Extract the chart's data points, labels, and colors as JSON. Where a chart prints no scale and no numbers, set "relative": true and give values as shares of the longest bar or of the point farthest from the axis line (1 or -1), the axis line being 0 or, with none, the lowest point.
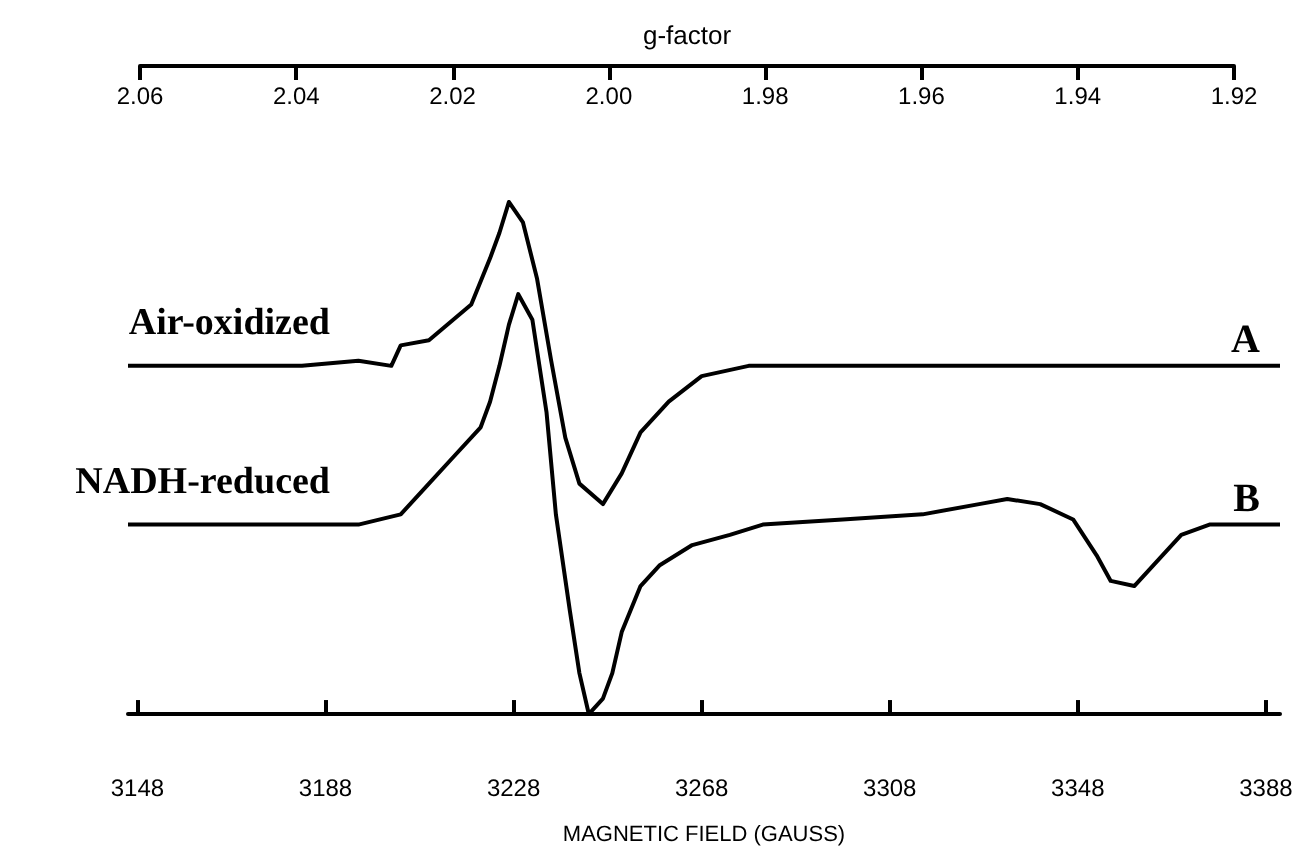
{
  "chart_data": {
    "type": "line",
    "relative": true,
    "marker": "none",
    "grid": false,
    "legend": false,
    "xlabel": "MAGNETIC FIELD (GAUSS)",
    "x2label": "g-factor",
    "xlim": [
      3146,
      3391
    ],
    "xticks": [
      3148,
      3188,
      3228,
      3268,
      3308,
      3348,
      3388
    ],
    "x2lim": [
      2.06,
      1.92
    ],
    "x2ticks": [
      2.06,
      2.04,
      2.02,
      {
        "value": 2.0,
        "label": "2.00"
      },
      1.98,
      1.96,
      1.94,
      1.92
    ],
    "series": [
      {
        "name": "Air-oxidized",
        "color": "#000000",
        "x": [
          3146,
          3183,
          3195,
          3202,
          3204,
          3210,
          3219,
          3223,
          3225,
          3227,
          3230,
          3233,
          3236,
          3239,
          3242,
          3247,
          3251,
          3255,
          3261,
          3268,
          3278,
          3391
        ],
        "values": [
          0.68,
          0.68,
          0.69,
          0.68,
          0.72,
          0.73,
          0.8,
          0.89,
          0.94,
          1,
          0.96,
          0.85,
          0.69,
          0.54,
          0.45,
          0.41,
          0.47,
          0.55,
          0.61,
          0.66,
          0.68,
          0.68
        ]
      },
      {
        "name": "NADH-reduced",
        "color": "#000000",
        "x": [
          3146,
          3195,
          3204,
          3210,
          3215,
          3221,
          3223,
          3225,
          3227,
          3229,
          3232,
          3235,
          3237,
          3240,
          3242,
          3244,
          3247,
          3249,
          3251,
          3255,
          3259,
          3266,
          3274,
          3281,
          3298,
          3315,
          3327,
          3333,
          3340,
          3347,
          3352,
          3355,
          3360,
          3364,
          3370,
          3376,
          3391
        ],
        "values": [
          0.37,
          0.37,
          0.39,
          0.45,
          0.5,
          0.56,
          0.61,
          0.68,
          0.76,
          0.82,
          0.77,
          0.59,
          0.39,
          0.2,
          0.08,
          0,
          0.03,
          0.08,
          0.16,
          0.25,
          0.29,
          0.33,
          0.35,
          0.37,
          0.38,
          0.39,
          0.41,
          0.42,
          0.41,
          0.38,
          0.31,
          0.26,
          0.25,
          0.29,
          0.35,
          0.37,
          0.37
        ]
      }
    ],
    "annotations": [
      "A",
      "B"
    ]
  }
}
